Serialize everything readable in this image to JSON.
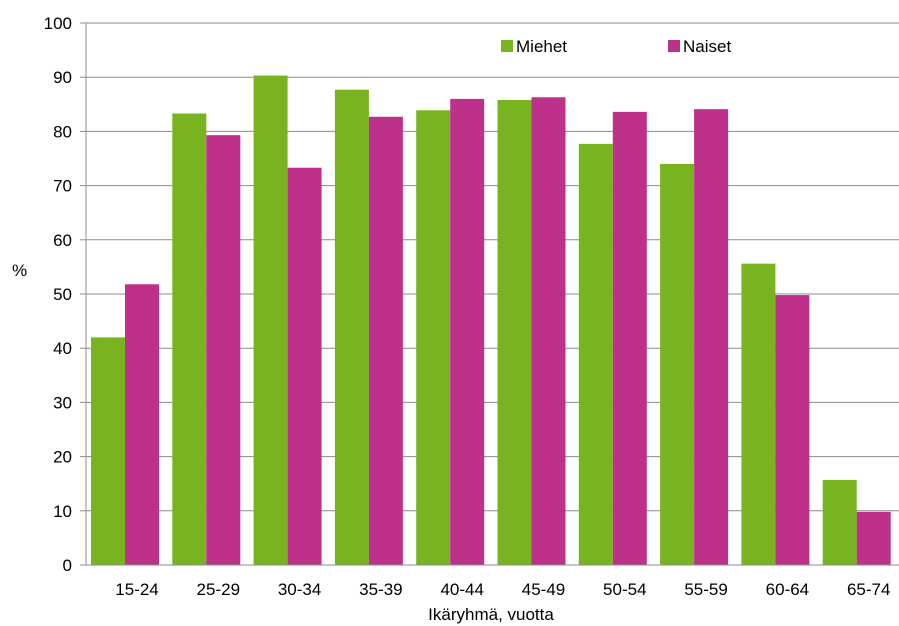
{
  "chart_data": {
    "type": "bar",
    "categories": [
      "15-24",
      "25-29",
      "30-34",
      "35-39",
      "40-44",
      "45-49",
      "50-54",
      "55-59",
      "60-64",
      "65-74"
    ],
    "series": [
      {
        "name": "Miehet",
        "color": "#77b41f",
        "values": [
          42,
          83.3,
          90.3,
          87.7,
          83.9,
          85.8,
          77.7,
          74,
          55.6,
          15.7
        ]
      },
      {
        "name": "Naiset",
        "color": "#be318a",
        "values": [
          51.8,
          79.3,
          73.3,
          82.7,
          86,
          86.3,
          83.6,
          84.1,
          49.8,
          9.8
        ]
      }
    ],
    "xlabel": "Ikäryhmä, vuotta",
    "ylabel": "%",
    "ylim": [
      0,
      100
    ],
    "yticks": [
      0,
      10,
      20,
      30,
      40,
      50,
      60,
      70,
      80,
      90,
      100
    ],
    "grid": true,
    "legend": "top-right"
  }
}
